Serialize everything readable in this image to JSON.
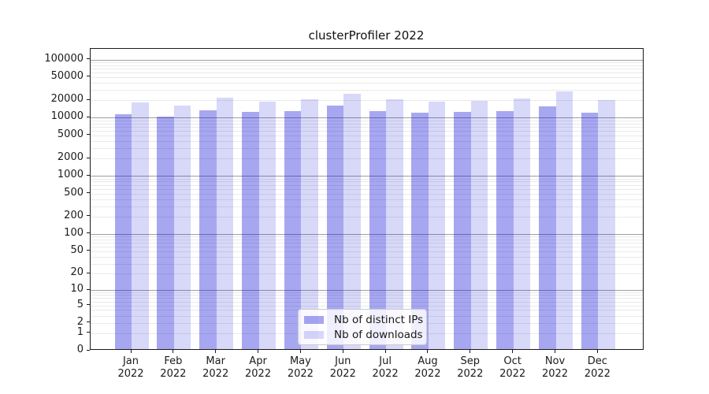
{
  "title": "clusterProfiler 2022",
  "chart_data": {
    "type": "bar",
    "title": "clusterProfiler 2022",
    "xlabel": "",
    "ylabel": "",
    "year": "2022",
    "categories": [
      "Jan",
      "Feb",
      "Mar",
      "Apr",
      "May",
      "Jun",
      "Jul",
      "Aug",
      "Sep",
      "Oct",
      "Nov",
      "Dec"
    ],
    "series": [
      {
        "name": "Nb of distinct IPs",
        "values": [
          10800,
          9800,
          12700,
          12000,
          12300,
          15300,
          12400,
          11400,
          11700,
          12400,
          14800,
          11400
        ]
      },
      {
        "name": "Nb of downloads",
        "values": [
          17500,
          15200,
          20700,
          18000,
          19300,
          24000,
          19500,
          17900,
          18500,
          19900,
          26600,
          19000
        ]
      }
    ],
    "scale": "log1p",
    "ylim": [
      0,
      155000
    ],
    "yticks": [
      0,
      1,
      2,
      5,
      10,
      20,
      50,
      100,
      200,
      500,
      1000,
      2000,
      5000,
      10000,
      20000,
      50000,
      100000
    ],
    "grid": "on",
    "legend_position": "lower center"
  },
  "legend": {
    "items": [
      {
        "label": "Nb of distinct IPs",
        "color": "rgba(10,10,215,0.36)"
      },
      {
        "label": "Nb of downloads",
        "color": "rgba(10,10,215,0.16)"
      }
    ]
  },
  "colors": {
    "bar_distinct_ips": "rgba(10,10,215,0.36)",
    "bar_downloads": "rgba(10,10,215,0.16)",
    "grid_major": "#9e9e9e",
    "grid_minor": "#eaeaea",
    "spine": "#1a1a1a",
    "background": "#ffffff"
  }
}
